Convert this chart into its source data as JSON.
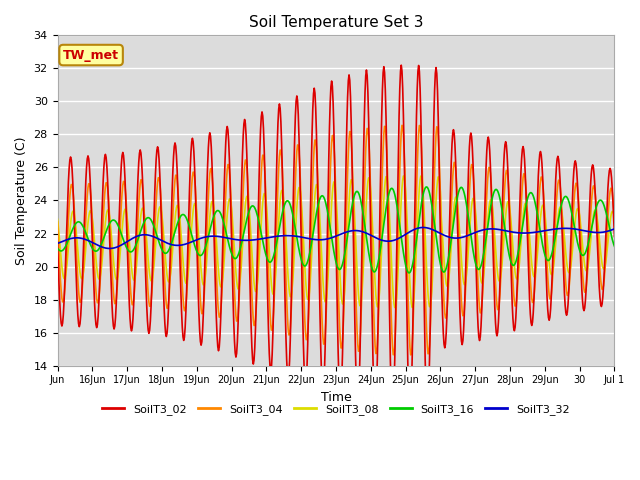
{
  "title": "Soil Temperature Set 3",
  "xlabel": "Time",
  "ylabel": "Soil Temperature (C)",
  "ylim": [
    14,
    34
  ],
  "yticks": [
    14,
    16,
    18,
    20,
    22,
    24,
    26,
    28,
    30,
    32,
    34
  ],
  "bg_color": "#dcdcdc",
  "annotation_text": "TW_met",
  "annotation_color": "#cc0000",
  "series_colors": {
    "SoilT3_02": "#dd0000",
    "SoilT3_04": "#ff8800",
    "SoilT3_08": "#dddd00",
    "SoilT3_16": "#00cc00",
    "SoilT3_32": "#0000cc"
  },
  "legend_colors": [
    "#dd0000",
    "#ff8800",
    "#dddd00",
    "#00cc00",
    "#0000cc"
  ],
  "legend_labels": [
    "SoilT3_02",
    "SoilT3_04",
    "SoilT3_08",
    "SoilT3_16",
    "SoilT3_32"
  ],
  "line_width": 1.2,
  "x_tick_labels": [
    "Jun",
    "16Jun",
    "17Jun",
    "18Jun",
    "19Jun",
    "20Jun",
    "21Jun",
    "22Jun",
    "23Jun",
    "24Jun",
    "25Jun",
    "26Jun",
    "27Jun",
    "28Jun",
    "29Jun",
    "30",
    "Jul 1"
  ],
  "n_days": 16,
  "base_mean": 21.5
}
